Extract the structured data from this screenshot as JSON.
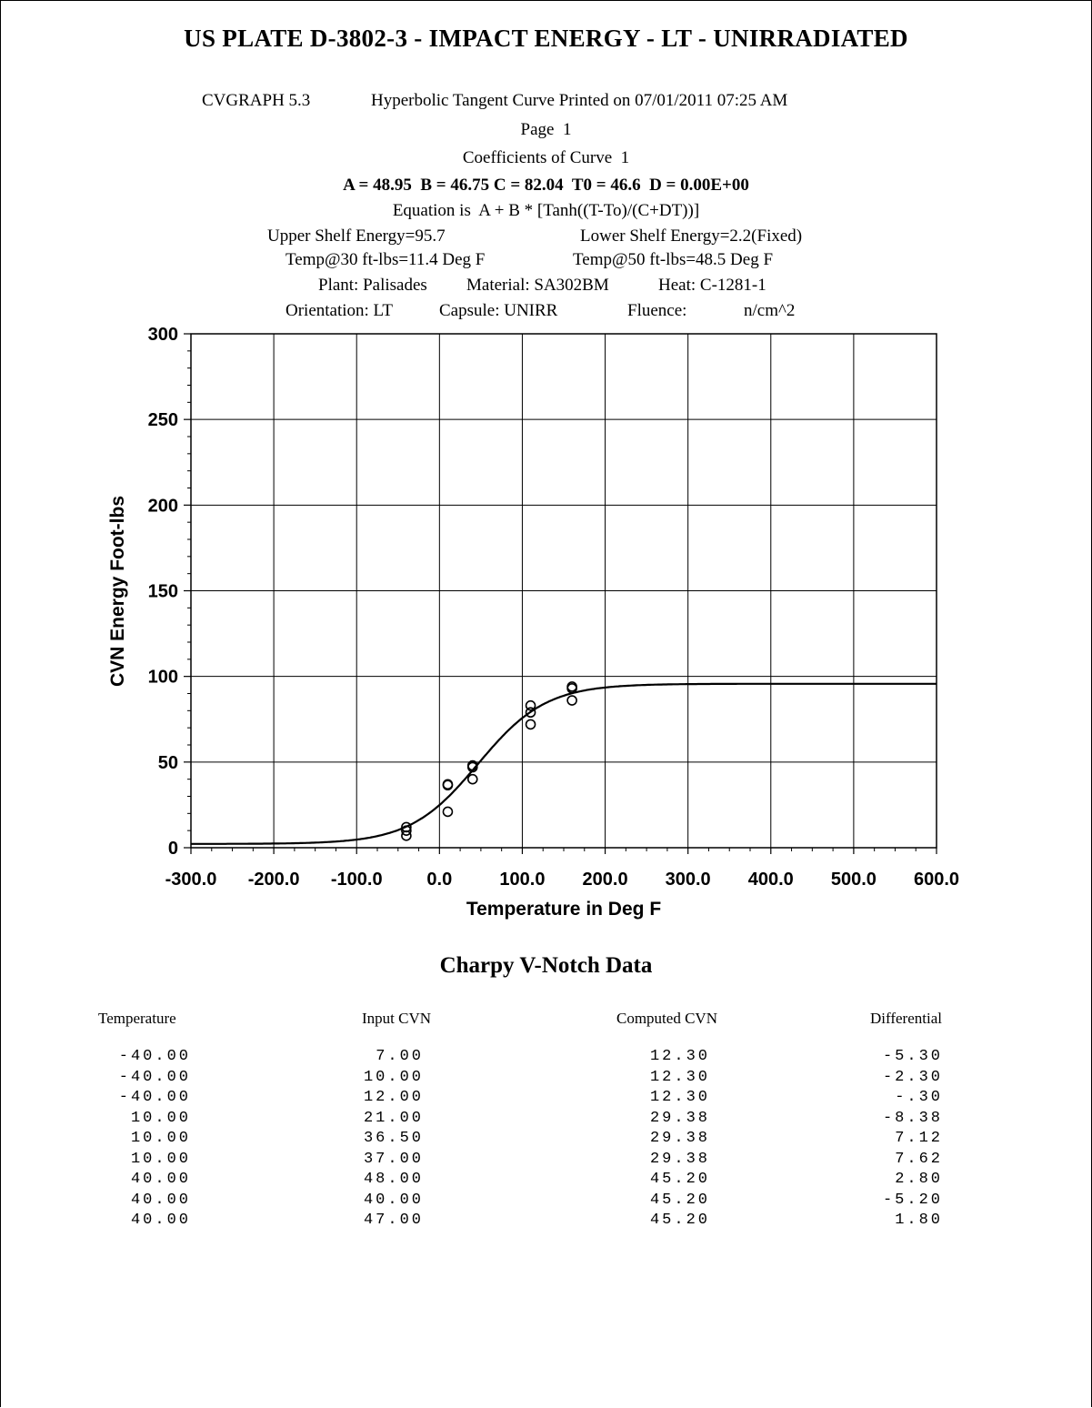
{
  "header": {
    "title": "US PLATE D-3802-3 - IMPACT ENERGY - LT - UNIRRADIATED",
    "program": "CVGRAPH 5.3",
    "printed": "Hyperbolic Tangent Curve Printed on 07/01/2011 07:25 AM",
    "page": "Page  1",
    "coeff_title": "Coefficients of Curve  1",
    "coefficients": "A = 48.95  B = 46.75 C = 82.04  T0 = 46.6  D = 0.00E+00",
    "equation": "Equation is  A + B * [Tanh((T-To)/(C+DT))]",
    "upper_shelf": "Upper Shelf Energy=95.7",
    "lower_shelf": "Lower Shelf Energy=2.2(Fixed)",
    "temp30": "Temp@30 ft-lbs=11.4 Deg F",
    "temp50": "Temp@50 ft-lbs=48.5 Deg F",
    "plant": "Plant: Palisades",
    "material": "Material: SA302BM",
    "heat": "Heat: C-1281-1",
    "orientation": "Orientation: LT",
    "capsule": "Capsule: UNIRR",
    "fluence": "Fluence:",
    "fluence_unit": "n/cm^2"
  },
  "chart_data": {
    "type": "scatter",
    "xlabel": "Temperature in Deg F",
    "ylabel": "CVN Energy Foot-lbs",
    "xlim": [
      -300,
      600
    ],
    "ylim": [
      0,
      300
    ],
    "xticks": [
      "-300.0",
      "-200.0",
      "-100.0",
      "0.0",
      "100.0",
      "200.0",
      "300.0",
      "400.0",
      "500.0",
      "600.0"
    ],
    "yticks": [
      "0",
      "50",
      "100",
      "150",
      "200",
      "250",
      "300"
    ],
    "grid": true,
    "curve": {
      "A": 48.95,
      "B": 46.75,
      "C": 82.04,
      "T0": 46.6
    },
    "points": [
      {
        "x": -40,
        "y": 7
      },
      {
        "x": -40,
        "y": 10
      },
      {
        "x": -40,
        "y": 12
      },
      {
        "x": 10,
        "y": 21
      },
      {
        "x": 10,
        "y": 36.5
      },
      {
        "x": 10,
        "y": 37
      },
      {
        "x": 40,
        "y": 48
      },
      {
        "x": 40,
        "y": 40
      },
      {
        "x": 40,
        "y": 47
      },
      {
        "x": 110,
        "y": 72
      },
      {
        "x": 110,
        "y": 79
      },
      {
        "x": 110,
        "y": 83
      },
      {
        "x": 160,
        "y": 86
      },
      {
        "x": 160,
        "y": 93
      },
      {
        "x": 160,
        "y": 94
      }
    ]
  },
  "table": {
    "title": "Charpy V-Notch Data",
    "columns": [
      "Temperature",
      "Input CVN",
      "Computed CVN",
      "Differential"
    ],
    "rows": [
      [
        "-40.00",
        "7.00",
        "12.30",
        "-5.30"
      ],
      [
        "-40.00",
        "10.00",
        "12.30",
        "-2.30"
      ],
      [
        "-40.00",
        "12.00",
        "12.30",
        "-.30"
      ],
      [
        "10.00",
        "21.00",
        "29.38",
        "-8.38"
      ],
      [
        "10.00",
        "36.50",
        "29.38",
        "7.12"
      ],
      [
        "10.00",
        "37.00",
        "29.38",
        "7.62"
      ],
      [
        "40.00",
        "48.00",
        "45.20",
        "2.80"
      ],
      [
        "40.00",
        "40.00",
        "45.20",
        "-5.20"
      ],
      [
        "40.00",
        "47.00",
        "45.20",
        "1.80"
      ]
    ]
  }
}
